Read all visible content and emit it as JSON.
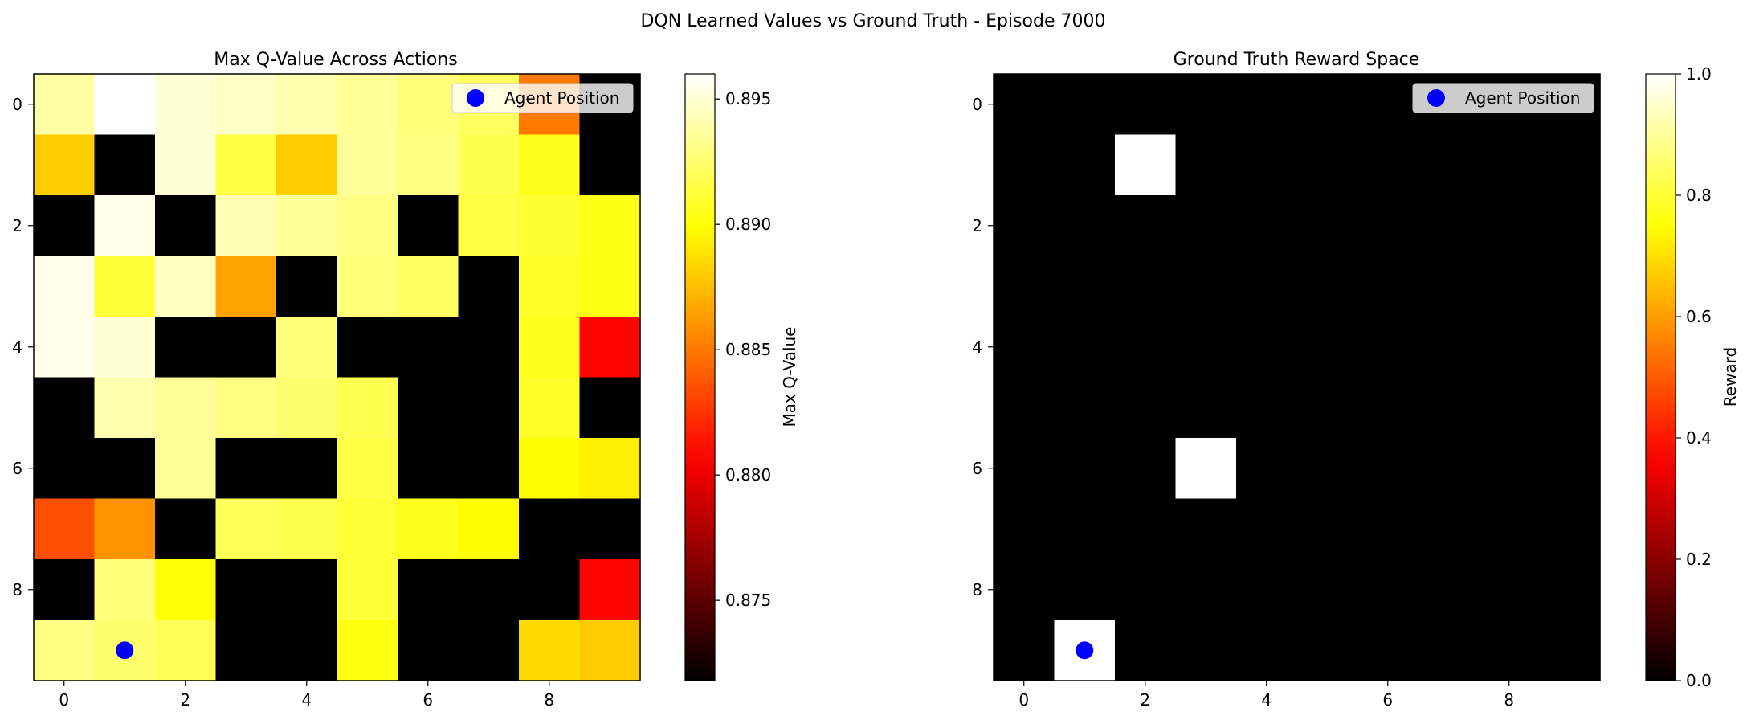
{
  "figure": {
    "suptitle": "DQN Learned Values vs Ground Truth - Episode 7000"
  },
  "chart_data": [
    {
      "type": "heatmap",
      "title": "Max Q-Value Across Actions",
      "colormap": "hot",
      "x_ticks": [
        0,
        2,
        4,
        6,
        8
      ],
      "y_ticks": [
        0,
        2,
        4,
        6,
        8
      ],
      "grid": false,
      "colorbar": {
        "label": "Max Q-Value",
        "range": [
          0.8718,
          0.896
        ],
        "ticks": [
          0.875,
          0.88,
          0.885,
          0.89,
          0.895
        ],
        "tick_labels": [
          "0.875",
          "0.880",
          "0.885",
          "0.890",
          "0.895"
        ]
      },
      "legend": {
        "label": "Agent Position",
        "placement": "top-right",
        "marker_color": "#0000ff"
      },
      "agent_position": {
        "col": 1,
        "row": 9
      },
      "values": [
        [
          0.8938,
          0.896,
          0.895,
          0.8946,
          0.8941,
          0.8935,
          0.8928,
          0.8922,
          0.885,
          0.8718
        ],
        [
          0.888,
          0.8718,
          0.895,
          0.8915,
          0.888,
          0.8935,
          0.893,
          0.8918,
          0.8905,
          0.8718
        ],
        [
          0.8718,
          0.8955,
          0.8718,
          0.8942,
          0.8935,
          0.893,
          0.8718,
          0.8915,
          0.891,
          0.8903
        ],
        [
          0.8955,
          0.8912,
          0.8945,
          0.8865,
          0.8718,
          0.8928,
          0.8922,
          0.8718,
          0.8908,
          0.8903
        ],
        [
          0.8955,
          0.895,
          0.8718,
          0.8718,
          0.8928,
          0.8718,
          0.8718,
          0.8718,
          0.8905,
          0.8808
        ],
        [
          0.8718,
          0.894,
          0.8935,
          0.893,
          0.8925,
          0.8918,
          0.8718,
          0.8718,
          0.8908,
          0.8718
        ],
        [
          0.8718,
          0.8718,
          0.8935,
          0.8718,
          0.8718,
          0.8915,
          0.8718,
          0.8718,
          0.8898,
          0.8893
        ],
        [
          0.8835,
          0.886,
          0.8718,
          0.892,
          0.8918,
          0.8912,
          0.8905,
          0.8898,
          0.8718,
          0.8718
        ],
        [
          0.8718,
          0.8928,
          0.89,
          0.8718,
          0.8718,
          0.8912,
          0.8718,
          0.8718,
          0.8718,
          0.8808
        ],
        [
          0.893,
          0.8925,
          0.892,
          0.8718,
          0.8718,
          0.8902,
          0.8718,
          0.8718,
          0.8885,
          0.888
        ]
      ]
    },
    {
      "type": "heatmap",
      "title": "Ground Truth Reward Space",
      "colormap": "hot",
      "x_ticks": [
        0,
        2,
        4,
        6,
        8
      ],
      "y_ticks": [
        0,
        2,
        4,
        6,
        8
      ],
      "grid": false,
      "colorbar": {
        "label": "Reward",
        "range": [
          0.0,
          1.0
        ],
        "ticks": [
          0.0,
          0.2,
          0.4,
          0.6,
          0.8,
          1.0
        ],
        "tick_labels": [
          "0.0",
          "0.2",
          "0.4",
          "0.6",
          "0.8",
          "1.0"
        ]
      },
      "legend": {
        "label": "Agent Position",
        "placement": "top-right",
        "marker_color": "#0000ff"
      },
      "agent_position": {
        "col": 1,
        "row": 9
      },
      "values": [
        [
          0,
          0,
          0,
          0,
          0,
          0,
          0,
          0,
          0,
          0
        ],
        [
          0,
          0,
          1,
          0,
          0,
          0,
          0,
          0,
          0,
          0
        ],
        [
          0,
          0,
          0,
          0,
          0,
          0,
          0,
          0,
          0,
          0
        ],
        [
          0,
          0,
          0,
          0,
          0,
          0,
          0,
          0,
          0,
          0
        ],
        [
          0,
          0,
          0,
          0,
          0,
          0,
          0,
          0,
          0,
          0
        ],
        [
          0,
          0,
          0,
          0,
          0,
          0,
          0,
          0,
          0,
          0
        ],
        [
          0,
          0,
          0,
          1,
          0,
          0,
          0,
          0,
          0,
          0
        ],
        [
          0,
          0,
          0,
          0,
          0,
          0,
          0,
          0,
          0,
          0
        ],
        [
          0,
          0,
          0,
          0,
          0,
          0,
          0,
          0,
          0,
          0
        ],
        [
          0,
          1,
          0,
          0,
          0,
          0,
          0,
          0,
          0,
          0
        ]
      ]
    }
  ]
}
